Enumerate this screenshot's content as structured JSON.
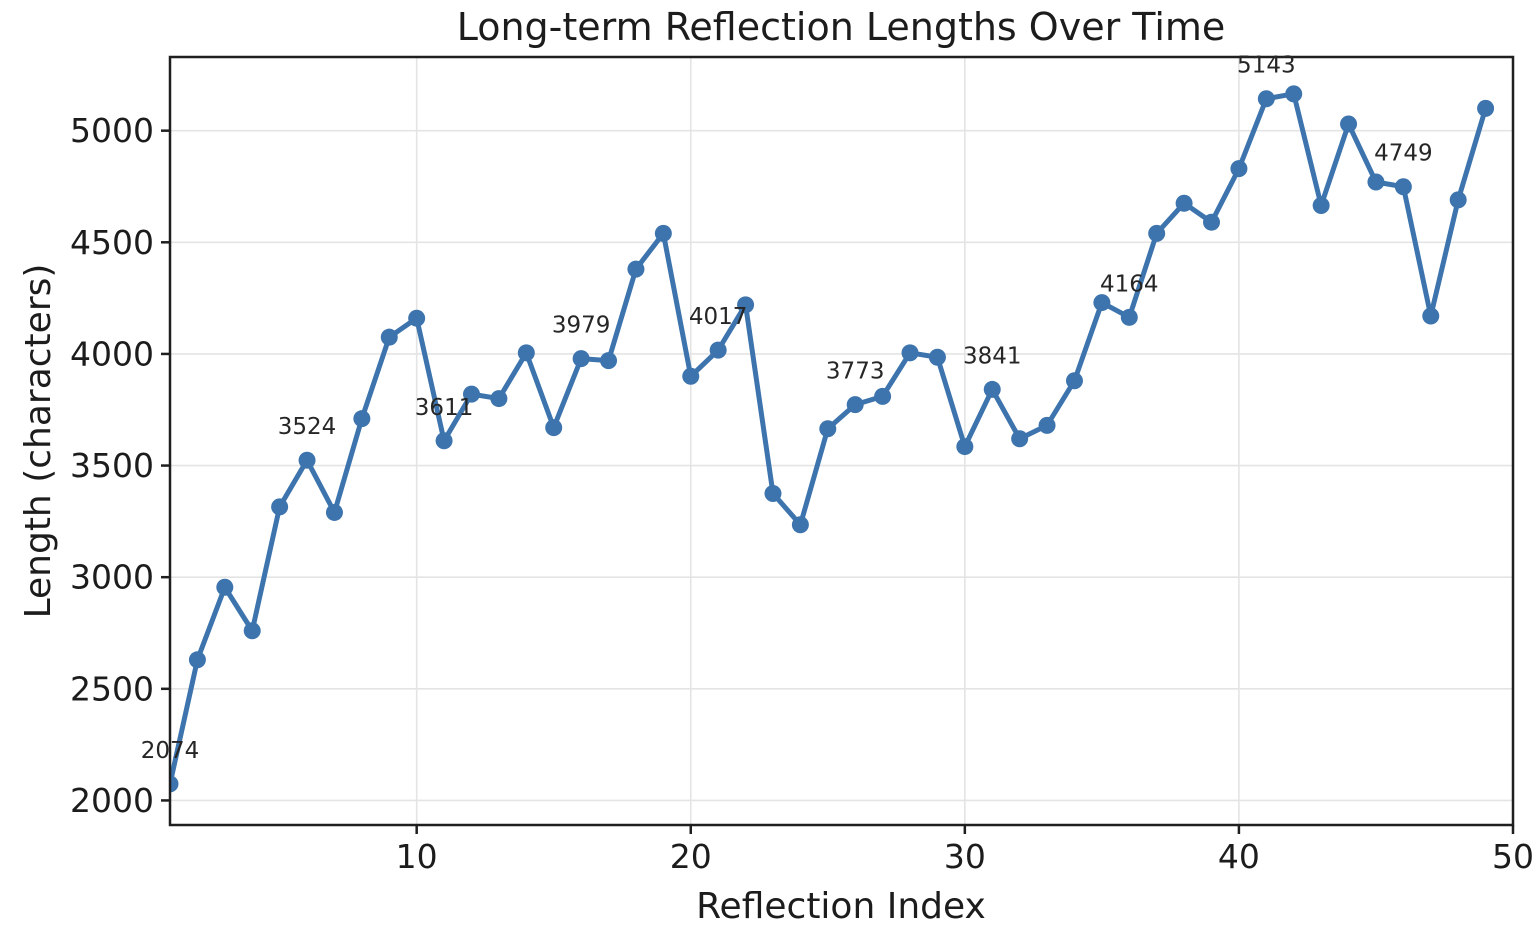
{
  "figure": {
    "title": "Long-term Reflection Lengths Over Time",
    "xlabel": "Reflection Index",
    "ylabel": "Length (characters)"
  },
  "chart_data": {
    "type": "line",
    "title": "Long-term Reflection Lengths Over Time",
    "xlabel": "Reflection Index",
    "ylabel": "Length (characters)",
    "x": [
      1,
      2,
      3,
      4,
      5,
      6,
      7,
      8,
      9,
      10,
      11,
      12,
      13,
      14,
      15,
      16,
      17,
      18,
      19,
      20,
      21,
      22,
      23,
      24,
      25,
      26,
      27,
      28,
      29,
      30,
      31,
      32,
      33,
      34,
      35,
      36,
      37,
      38,
      39,
      40,
      41,
      42,
      43,
      44,
      45,
      46,
      47,
      48,
      49
    ],
    "y": [
      2074,
      2630,
      2955,
      2760,
      3315,
      3524,
      3290,
      3710,
      4075,
      4160,
      3611,
      3820,
      3800,
      4005,
      3670,
      3979,
      3970,
      4380,
      4540,
      3900,
      4017,
      4220,
      3375,
      3235,
      3665,
      3773,
      3810,
      4005,
      3985,
      3585,
      3841,
      3620,
      3680,
      3880,
      4230,
      4164,
      4540,
      4675,
      4590,
      4830,
      5143,
      5165,
      4665,
      5030,
      4770,
      4749,
      4170,
      4690,
      5100
    ],
    "annotated_points": [
      {
        "x": 1,
        "label": "2074"
      },
      {
        "x": 6,
        "label": "3524"
      },
      {
        "x": 11,
        "label": "3611"
      },
      {
        "x": 16,
        "label": "3979"
      },
      {
        "x": 21,
        "label": "4017"
      },
      {
        "x": 26,
        "label": "3773"
      },
      {
        "x": 31,
        "label": "3841"
      },
      {
        "x": 36,
        "label": "4164"
      },
      {
        "x": 41,
        "label": "5143"
      },
      {
        "x": 46,
        "label": "4749"
      }
    ],
    "xticks": [
      10,
      20,
      30,
      40,
      50
    ],
    "yticks": [
      2000,
      2500,
      3000,
      3500,
      4000,
      4500,
      5000
    ],
    "xlim": [
      1,
      50
    ],
    "ylim": [
      1890,
      5330
    ],
    "grid": true,
    "legend": "none",
    "line_color": "#3d74ad",
    "marker": "o",
    "grid_color": "#e4e4e4",
    "spine_color": "#1f1f1f",
    "text_color": "#1c1c1c"
  }
}
